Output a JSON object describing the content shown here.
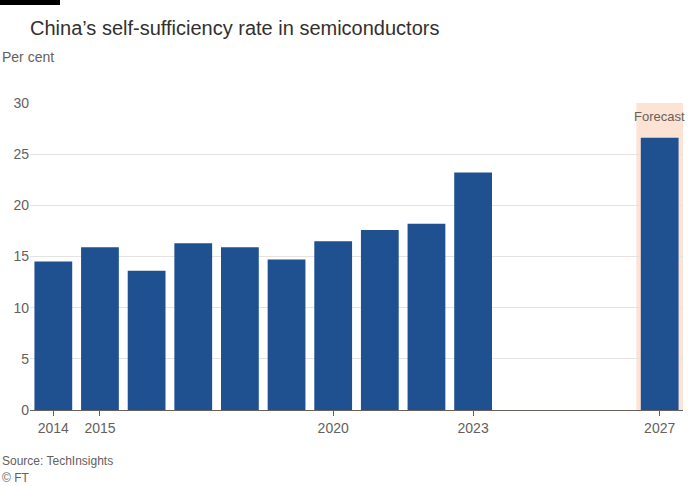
{
  "chart_data": {
    "type": "bar",
    "title": "China’s self-sufficiency rate in semiconductors",
    "subtitle": "Per cent",
    "categories": [
      "2014",
      "2015",
      null,
      null,
      null,
      null,
      "2020",
      null,
      null,
      "2023",
      null,
      null,
      null,
      "2027"
    ],
    "values": [
      14.5,
      15.9,
      13.6,
      16.3,
      15.9,
      14.7,
      16.5,
      17.6,
      18.2,
      23.2,
      null,
      null,
      null,
      26.6
    ],
    "color": "#1f5191",
    "ylim": [
      0,
      30
    ],
    "yticks": [
      0,
      5,
      10,
      15,
      20,
      25,
      30
    ],
    "grid": true,
    "annotations": [
      {
        "text": "Forecast",
        "category": "2027"
      }
    ],
    "notes": [
      "Source: TechInsights",
      "© FT"
    ]
  }
}
